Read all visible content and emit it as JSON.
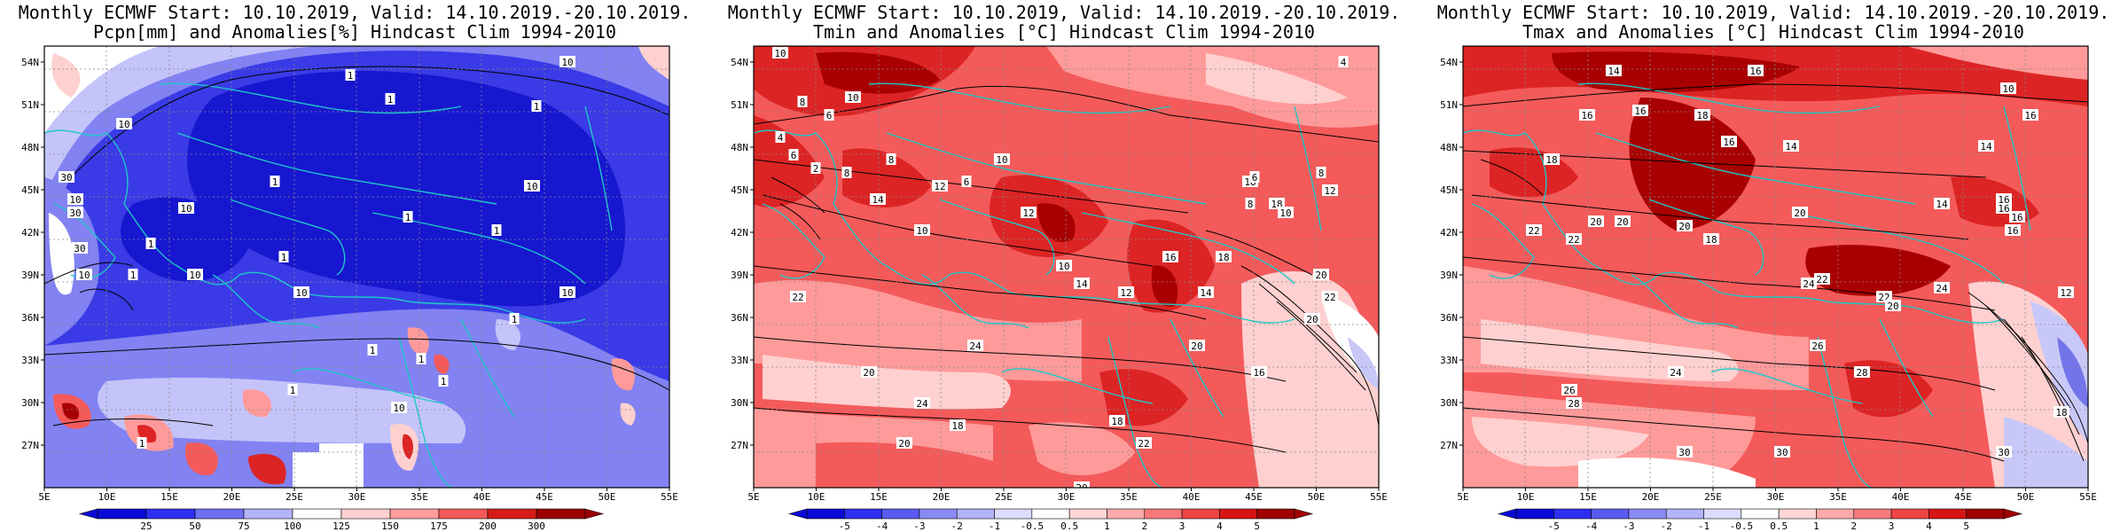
{
  "panels": [
    {
      "title_line1": "Monthly ECMWF Start: 10.10.2019, Valid: 14.10.2019.-20.10.2019.",
      "title_line2": "Pcpn[mm] and Anomalies[%] Hindcast Clim 1994-2010",
      "lat_labels": [
        "54N",
        "51N",
        "48N",
        "45N",
        "42N",
        "39N",
        "36N",
        "33N",
        "30N",
        "27N"
      ],
      "lon_labels": [
        "5E",
        "10E",
        "15E",
        "20E",
        "25E",
        "30E",
        "35E",
        "40E",
        "45E",
        "50E",
        "55E"
      ],
      "colorbar_labels": [
        "25",
        "50",
        "75",
        "100",
        "125",
        "150",
        "175",
        "200",
        "300"
      ],
      "colorbar_colors": [
        "#0a0ad6",
        "#2e2ef0",
        "#6f6ff5",
        "#b4b4fa",
        "#ffffff",
        "#ffd0d0",
        "#ff9c9c",
        "#f55a5a",
        "#d61a1a",
        "#9a0000"
      ],
      "contour_labels": [
        "10",
        "1",
        "10",
        "10",
        "30",
        "10",
        "1",
        "1",
        "1",
        "1",
        "1",
        "10",
        "1",
        "10",
        "1",
        "10",
        "30",
        "30",
        "10",
        "10",
        "1",
        "1",
        "1",
        "10",
        "1",
        "1",
        "1",
        "1"
      ]
    },
    {
      "title_line1": "Monthly ECMWF Start: 10.10.2019, Valid: 14.10.2019.-20.10.2019.",
      "title_line2": "Tmin and Anomalies [°C] Hindcast Clim 1994-2010",
      "lat_labels": [
        "54N",
        "51N",
        "48N",
        "45N",
        "42N",
        "39N",
        "36N",
        "33N",
        "30N",
        "27N"
      ],
      "lon_labels": [
        "5E",
        "10E",
        "15E",
        "20E",
        "25E",
        "30E",
        "35E",
        "40E",
        "45E",
        "50E",
        "55E"
      ],
      "colorbar_labels": [
        "-5",
        "-4",
        "-3",
        "-2",
        "-1",
        "-0.5",
        "0.5",
        "1",
        "2",
        "3",
        "4",
        "5"
      ],
      "colorbar_colors": [
        "#0a0ad6",
        "#2e2ef0",
        "#5a5af2",
        "#8a8af6",
        "#b4b4fa",
        "#dcdcfd",
        "#ffffff",
        "#ffd6d6",
        "#ffaaaa",
        "#f77a7a",
        "#ee4444",
        "#d61414",
        "#a00000"
      ],
      "contour_labels": [
        "10",
        "8",
        "10",
        "6",
        "4",
        "6",
        "2",
        "8",
        "8",
        "12",
        "14",
        "10",
        "6",
        "10",
        "12",
        "10",
        "14",
        "12",
        "16",
        "14",
        "18",
        "18",
        "20",
        "22",
        "22",
        "20",
        "24",
        "18",
        "20",
        "18",
        "20",
        "16",
        "20",
        "22",
        "24",
        "18",
        "20",
        "4",
        "8",
        "12",
        "6",
        "8",
        "10"
      ]
    },
    {
      "title_line1": "Monthly ECMWF Start: 10.10.2019, Valid: 14.10.2019.-20.10.2019.",
      "title_line2": "Tmax and Anomalies [°C] Hindcast Clim 1994-2010",
      "lat_labels": [
        "54N",
        "51N",
        "48N",
        "45N",
        "42N",
        "39N",
        "36N",
        "33N",
        "30N",
        "27N"
      ],
      "lon_labels": [
        "5E",
        "10E",
        "15E",
        "20E",
        "25E",
        "30E",
        "35E",
        "40E",
        "45E",
        "50E",
        "55E"
      ],
      "colorbar_labels": [
        "-5",
        "-4",
        "-3",
        "-2",
        "-1",
        "-0.5",
        "0.5",
        "1",
        "2",
        "3",
        "4",
        "5"
      ],
      "colorbar_colors": [
        "#0a0ad6",
        "#2e2ef0",
        "#5a5af2",
        "#8a8af6",
        "#b4b4fa",
        "#dcdcfd",
        "#ffffff",
        "#ffd6d6",
        "#ffaaaa",
        "#f77a7a",
        "#ee4444",
        "#d61414",
        "#a00000"
      ],
      "contour_labels": [
        "14",
        "16",
        "10",
        "16",
        "16",
        "18",
        "16",
        "14",
        "18",
        "14",
        "14",
        "16",
        "20",
        "20",
        "22",
        "20",
        "18",
        "20",
        "16",
        "16",
        "16",
        "22",
        "22",
        "24",
        "22",
        "20",
        "24",
        "26",
        "28",
        "24",
        "26",
        "28",
        "30",
        "30",
        "30",
        "18",
        "12",
        "16"
      ]
    }
  ],
  "fill_colors": {
    "precip_deep": "#1717d0",
    "precip_mid": "#3a3ae6",
    "precip_light": "#8282f2",
    "precip_pale": "#c4c4fa",
    "warm_pale": "#ffd0d0",
    "warm_light": "#ff9a9a",
    "warm_mid": "#f45a5a",
    "warm_strong": "#dc2424",
    "warm_deep": "#a80000",
    "cool_pale": "#c8c8f8",
    "cool_mid": "#7474ea",
    "coast": "#1ec8c8"
  }
}
